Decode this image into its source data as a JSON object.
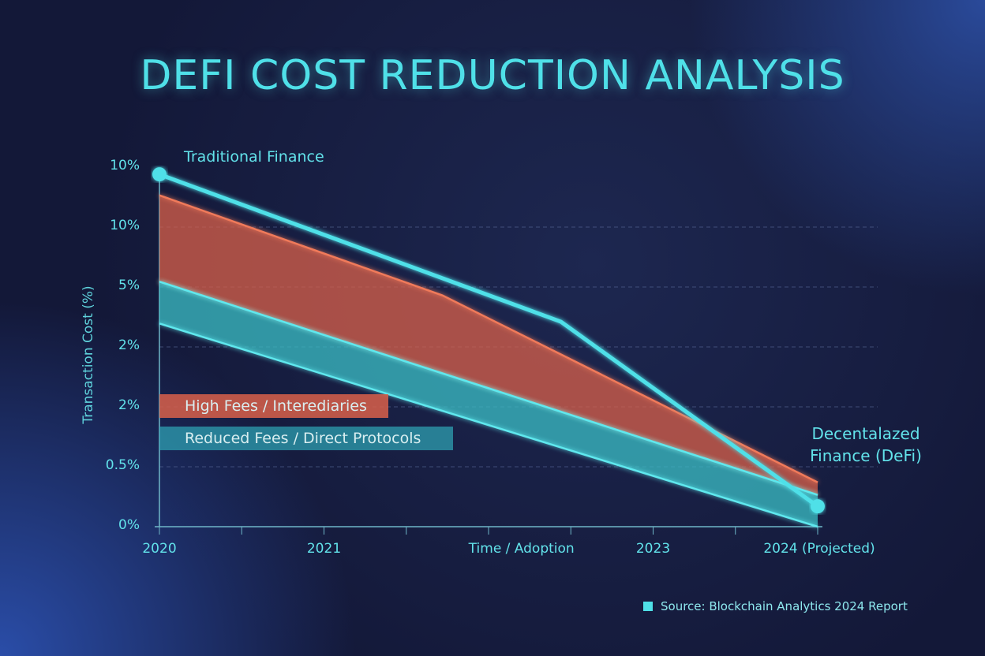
{
  "chart_data": {
    "type": "area",
    "title": "DEFI COST REDUCTION ANALYSIS",
    "ylabel": "Transaction Cost (%)",
    "xlabel": "Time / Adoption",
    "x_tick_labels": [
      {
        "x": 2020,
        "label": "2020"
      },
      {
        "x": 2021,
        "label": "2021"
      },
      {
        "x": 2022.2,
        "label": "Time / Adoption"
      },
      {
        "x": 2023,
        "label": "2023"
      },
      {
        "x": 2024,
        "label": "2024 (Projected)"
      }
    ],
    "y_tick_labels": [
      "0%",
      "0.5%",
      "2%",
      "2%",
      "5%",
      "10%",
      "10%"
    ],
    "y_scale": "ordinal tick levels 0-6",
    "xlim": [
      2020,
      2024
    ],
    "ylim": [
      0,
      6
    ],
    "grid": "horizontal dashed",
    "colors": {
      "traditional": "#4fe0e8",
      "high_fees": "#d9604a",
      "reduced_fees": "#3bbfc6"
    },
    "series": [
      {
        "name": "Traditional Finance",
        "kind": "line",
        "points": [
          [
            2020,
            5.88
          ],
          [
            2022.44,
            3.42
          ],
          [
            2024,
            0.34
          ]
        ]
      },
      {
        "name": "High Fees / Interediaries",
        "kind": "band",
        "upper": [
          [
            2020,
            5.53
          ],
          [
            2021.72,
            3.86
          ],
          [
            2024,
            0.74
          ]
        ],
        "lower": [
          [
            2020,
            4.09
          ],
          [
            2024,
            0.53
          ]
        ]
      },
      {
        "name": "Reduced Fees / Direct Protocols",
        "kind": "band",
        "upper": [
          [
            2020,
            4.09
          ],
          [
            2024,
            0.53
          ]
        ],
        "lower": [
          [
            2020,
            3.39
          ],
          [
            2024,
            0.0
          ]
        ]
      }
    ],
    "annotations": {
      "start": "Traditional Finance",
      "end_line1": "Decentalazed",
      "end_line2": "Finance (DeFi)"
    },
    "legend": [
      {
        "label": "High Fees / Interediaries",
        "color": "#d9604a"
      },
      {
        "label": "Reduced Fees / Direct Protocols",
        "color": "#2fa8b8"
      }
    ],
    "legend_placement": "lower-left inside",
    "source": "Source: Blockchain Analytics 2024 Report"
  }
}
